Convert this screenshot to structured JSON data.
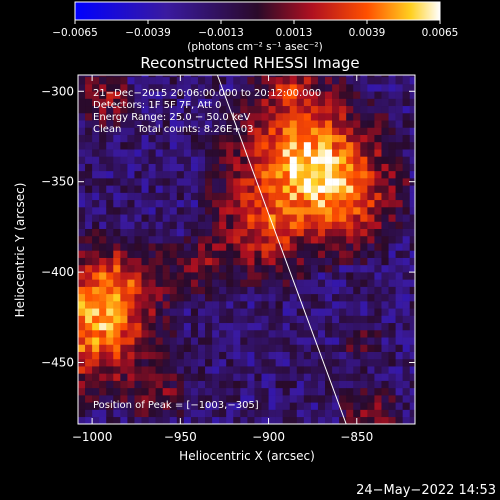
{
  "colorbar": {
    "ticks": [
      "−0.0065",
      "−0.0039",
      "−0.0013",
      "0.0013",
      "0.0039",
      "0.0065"
    ],
    "units_label": "(photons cm⁻² s⁻¹ asec⁻²)",
    "range": [
      -0.0065,
      0.0065
    ]
  },
  "chart_data": {
    "type": "heatmap",
    "title": "Reconstructed RHESSI Image",
    "xlabel": "Heliocentric X (arcsec)",
    "ylabel": "Heliocentric Y (arcsec)",
    "xlim": [
      -1008,
      -817
    ],
    "ylim": [
      -484,
      -291
    ],
    "x_ticks": [
      {
        "value": -1000,
        "label": "−1000"
      },
      {
        "value": -950,
        "label": "−950"
      },
      {
        "value": -900,
        "label": "−900"
      },
      {
        "value": -850,
        "label": "−850"
      }
    ],
    "y_ticks": [
      {
        "value": -300,
        "label": "−300"
      },
      {
        "value": -350,
        "label": "−350"
      },
      {
        "value": -400,
        "label": "−400"
      },
      {
        "value": -450,
        "label": "−450"
      }
    ],
    "annotations": [
      "21−Dec−2015 20:06:00.000 to 20:12:00.000",
      "Detectors: 1F 5F 7F, Att 0",
      "Energy Range: 25.0 − 50.0 keV",
      "Clean     Total counts: 8.26E+03"
    ],
    "peak_label": "Position of Peak = [−1003,−305]",
    "peak": [
      -1003,
      -305
    ],
    "limb_line": [
      [
        -929,
        -291
      ],
      [
        -856,
        -484
      ]
    ],
    "sources": [
      {
        "x": -883,
        "y": -340,
        "s": 24,
        "a": 1.0
      },
      {
        "x": -860,
        "y": -360,
        "s": 18,
        "a": 0.55
      },
      {
        "x": -905,
        "y": -380,
        "s": 16,
        "a": 0.5
      },
      {
        "x": -940,
        "y": -400,
        "s": 10,
        "a": 0.35
      },
      {
        "x": -1003,
        "y": -430,
        "s": 22,
        "a": 0.9
      },
      {
        "x": -985,
        "y": -405,
        "s": 14,
        "a": 0.4
      },
      {
        "x": -965,
        "y": -470,
        "s": 10,
        "a": 0.3
      },
      {
        "x": -845,
        "y": -480,
        "s": 10,
        "a": 0.35
      },
      {
        "x": -850,
        "y": -440,
        "s": 8,
        "a": 0.2
      },
      {
        "x": -995,
        "y": -305,
        "s": 10,
        "a": 0.35
      },
      {
        "x": -890,
        "y": -300,
        "s": 9,
        "a": 0.3
      }
    ]
  },
  "footer": {
    "timestamp": "24−May−2022 14:53"
  }
}
